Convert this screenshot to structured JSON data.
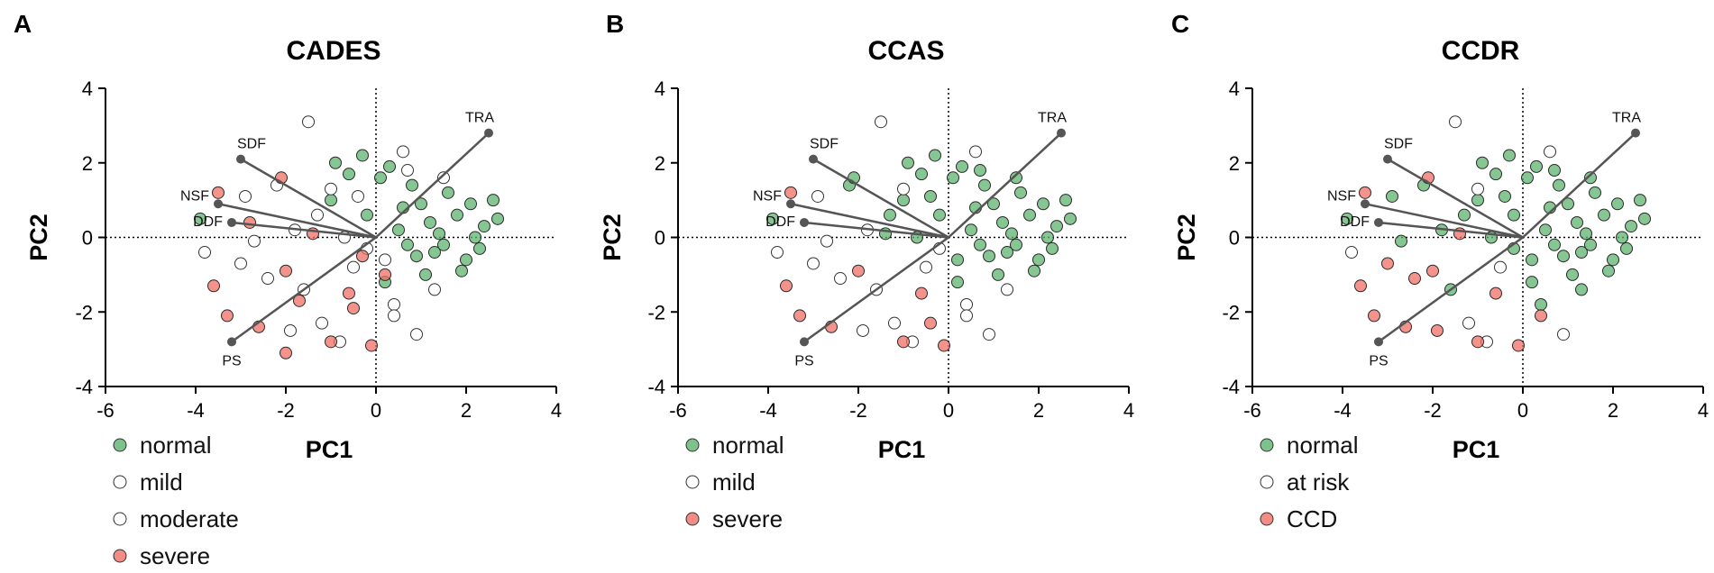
{
  "chart_data": [
    {
      "type": "scatter",
      "panel_letter": "A",
      "title": "CADES",
      "xlabel": "PC1",
      "ylabel": "PC2",
      "xlim": [
        -6,
        4
      ],
      "ylim": [
        -4,
        4
      ],
      "xticks": [
        "-6",
        "-4",
        "-2",
        "0",
        "2",
        "4"
      ],
      "yticks": [
        "4",
        "2",
        "0",
        "-2",
        "-4"
      ],
      "legend": [
        {
          "name": "normal",
          "color": "#5cb36e"
        },
        {
          "name": "mild",
          "color": "#ffffff"
        },
        {
          "name": "moderate",
          "color": "#ffffff"
        },
        {
          "name": "severe",
          "color": "#ef6f65"
        }
      ],
      "loadings": [
        {
          "label": "TRA",
          "x": 2.5,
          "y": 2.8
        },
        {
          "label": "SDF",
          "x": -3.0,
          "y": 2.1
        },
        {
          "label": "NSF",
          "x": -3.5,
          "y": 0.9
        },
        {
          "label": "DDF",
          "x": -3.2,
          "y": 0.4
        },
        {
          "label": "PS",
          "x": -3.2,
          "y": -2.8
        }
      ],
      "series": [
        {
          "name": "normal",
          "points": [
            [
              1.8,
              0.6
            ],
            [
              2.1,
              0.9
            ],
            [
              2.4,
              0.3
            ],
            [
              1.5,
              -0.2
            ],
            [
              2.6,
              1.0
            ],
            [
              1.2,
              0.4
            ],
            [
              0.9,
              -0.5
            ],
            [
              2.0,
              -0.6
            ],
            [
              1.6,
              1.2
            ],
            [
              0.6,
              0.8
            ],
            [
              1.1,
              -1.0
            ],
            [
              2.3,
              -0.3
            ],
            [
              1.4,
              0.1
            ],
            [
              0.3,
              1.9
            ],
            [
              -0.3,
              2.2
            ],
            [
              0.1,
              1.6
            ],
            [
              -0.6,
              1.7
            ],
            [
              -0.2,
              0.6
            ],
            [
              0.5,
              0.2
            ],
            [
              2.2,
              0.0
            ],
            [
              1.9,
              -0.9
            ],
            [
              0.8,
              1.4
            ],
            [
              1.3,
              -0.4
            ],
            [
              2.7,
              0.5
            ],
            [
              -1.0,
              1.0
            ],
            [
              0.2,
              -1.2
            ],
            [
              0.7,
              -0.2
            ],
            [
              1.0,
              0.9
            ],
            [
              -3.9,
              0.5
            ],
            [
              -0.9,
              2.0
            ]
          ]
        },
        {
          "name": "mild",
          "points": [
            [
              -1.5,
              3.1
            ],
            [
              -1.0,
              1.3
            ],
            [
              -0.5,
              -0.8
            ],
            [
              0.4,
              -1.8
            ],
            [
              -2.4,
              -1.1
            ],
            [
              -1.8,
              0.2
            ],
            [
              0.9,
              -2.6
            ],
            [
              -1.2,
              -2.3
            ],
            [
              0.6,
              2.3
            ],
            [
              -0.2,
              -0.3
            ],
            [
              1.3,
              -1.4
            ],
            [
              -2.9,
              1.1
            ],
            [
              -1.6,
              -1.4
            ],
            [
              -0.8,
              -2.8
            ]
          ]
        },
        {
          "name": "moderate",
          "points": [
            [
              -2.2,
              1.4
            ],
            [
              -1.3,
              0.6
            ],
            [
              -0.4,
              1.1
            ],
            [
              0.2,
              -0.6
            ],
            [
              -2.7,
              -0.1
            ],
            [
              -3.0,
              -0.7
            ],
            [
              0.7,
              1.8
            ],
            [
              -1.9,
              -2.5
            ],
            [
              0.4,
              -2.1
            ],
            [
              -3.8,
              -0.4
            ],
            [
              -0.7,
              0.0
            ],
            [
              1.5,
              1.6
            ]
          ]
        },
        {
          "name": "severe",
          "points": [
            [
              -3.5,
              1.2
            ],
            [
              -2.6,
              -2.4
            ],
            [
              -2.0,
              -0.9
            ],
            [
              -1.4,
              0.1
            ],
            [
              -0.6,
              -1.5
            ],
            [
              -0.1,
              -2.9
            ],
            [
              -0.5,
              -1.9
            ],
            [
              -1.0,
              -2.8
            ],
            [
              -3.6,
              -1.3
            ],
            [
              -2.1,
              1.6
            ],
            [
              -0.3,
              -0.5
            ],
            [
              0.2,
              -1.0
            ],
            [
              -2.8,
              0.4
            ],
            [
              -1.7,
              -1.7
            ],
            [
              -3.3,
              -2.1
            ],
            [
              -2.0,
              -3.1
            ]
          ]
        }
      ]
    },
    {
      "type": "scatter",
      "panel_letter": "B",
      "title": "CCAS",
      "xlabel": "PC1",
      "ylabel": "PC2",
      "xlim": [
        -6,
        4
      ],
      "ylim": [
        -4,
        4
      ],
      "xticks": [
        "-6",
        "-4",
        "-2",
        "0",
        "2",
        "4"
      ],
      "yticks": [
        "4",
        "2",
        "0",
        "-2",
        "-4"
      ],
      "legend": [
        {
          "name": "normal",
          "color": "#5cb36e"
        },
        {
          "name": "mild",
          "color": "#ffffff"
        },
        {
          "name": "severe",
          "color": "#ef6f65"
        }
      ],
      "loadings": [
        {
          "label": "TRA",
          "x": 2.5,
          "y": 2.8
        },
        {
          "label": "SDF",
          "x": -3.0,
          "y": 2.1
        },
        {
          "label": "NSF",
          "x": -3.5,
          "y": 0.9
        },
        {
          "label": "DDF",
          "x": -3.2,
          "y": 0.4
        },
        {
          "label": "PS",
          "x": -3.2,
          "y": -2.8
        }
      ],
      "series": [
        {
          "name": "normal",
          "points": [
            [
              1.8,
              0.6
            ],
            [
              2.1,
              0.9
            ],
            [
              2.4,
              0.3
            ],
            [
              1.5,
              -0.2
            ],
            [
              2.6,
              1.0
            ],
            [
              1.2,
              0.4
            ],
            [
              0.9,
              -0.5
            ],
            [
              2.0,
              -0.6
            ],
            [
              1.6,
              1.2
            ],
            [
              0.6,
              0.8
            ],
            [
              1.1,
              -1.0
            ],
            [
              2.3,
              -0.3
            ],
            [
              1.4,
              0.1
            ],
            [
              0.3,
              1.9
            ],
            [
              -0.3,
              2.2
            ],
            [
              0.1,
              1.6
            ],
            [
              -0.6,
              1.7
            ],
            [
              -0.2,
              0.6
            ],
            [
              0.5,
              0.2
            ],
            [
              2.2,
              0.0
            ],
            [
              1.9,
              -0.9
            ],
            [
              0.8,
              1.4
            ],
            [
              1.3,
              -0.4
            ],
            [
              2.7,
              0.5
            ],
            [
              -1.0,
              1.0
            ],
            [
              0.2,
              -1.2
            ],
            [
              0.7,
              -0.2
            ],
            [
              1.0,
              0.9
            ],
            [
              -3.9,
              0.5
            ],
            [
              -0.9,
              2.0
            ],
            [
              -2.2,
              1.4
            ],
            [
              -1.3,
              0.6
            ],
            [
              -0.4,
              1.1
            ],
            [
              0.7,
              1.8
            ],
            [
              1.5,
              1.6
            ],
            [
              -0.7,
              0.0
            ],
            [
              0.2,
              -0.6
            ],
            [
              -1.4,
              0.1
            ],
            [
              -2.1,
              1.6
            ]
          ]
        },
        {
          "name": "mild",
          "points": [
            [
              -1.5,
              3.1
            ],
            [
              -1.0,
              1.3
            ],
            [
              -0.5,
              -0.8
            ],
            [
              0.4,
              -1.8
            ],
            [
              -2.4,
              -1.1
            ],
            [
              -1.8,
              0.2
            ],
            [
              0.9,
              -2.6
            ],
            [
              -1.2,
              -2.3
            ],
            [
              0.6,
              2.3
            ],
            [
              -0.2,
              -0.3
            ],
            [
              1.3,
              -1.4
            ],
            [
              -2.9,
              1.1
            ],
            [
              -1.6,
              -1.4
            ],
            [
              -0.8,
              -2.8
            ],
            [
              -2.7,
              -0.1
            ],
            [
              -3.0,
              -0.7
            ],
            [
              -1.9,
              -2.5
            ],
            [
              0.4,
              -2.1
            ],
            [
              -3.8,
              -0.4
            ]
          ]
        },
        {
          "name": "severe",
          "points": [
            [
              -3.5,
              1.2
            ],
            [
              -2.6,
              -2.4
            ],
            [
              -2.0,
              -0.9
            ],
            [
              -0.6,
              -1.5
            ],
            [
              -0.1,
              -2.9
            ],
            [
              -1.0,
              -2.8
            ],
            [
              -3.6,
              -1.3
            ],
            [
              -3.3,
              -2.1
            ],
            [
              -0.4,
              -2.3
            ]
          ]
        }
      ]
    },
    {
      "type": "scatter",
      "panel_letter": "C",
      "title": "CCDR",
      "xlabel": "PC1",
      "ylabel": "PC2",
      "xlim": [
        -6,
        4
      ],
      "ylim": [
        -4,
        4
      ],
      "xticks": [
        "-6",
        "-4",
        "-2",
        "0",
        "2",
        "4"
      ],
      "yticks": [
        "4",
        "2",
        "0",
        "-2",
        "-4"
      ],
      "legend": [
        {
          "name": "normal",
          "color": "#5cb36e"
        },
        {
          "name": "at risk",
          "color": "#ffffff"
        },
        {
          "name": "CCD",
          "color": "#ef6f65"
        }
      ],
      "loadings": [
        {
          "label": "TRA",
          "x": 2.5,
          "y": 2.8
        },
        {
          "label": "SDF",
          "x": -3.0,
          "y": 2.1
        },
        {
          "label": "NSF",
          "x": -3.5,
          "y": 0.9
        },
        {
          "label": "DDF",
          "x": -3.2,
          "y": 0.4
        },
        {
          "label": "PS",
          "x": -3.2,
          "y": -2.8
        }
      ],
      "series": [
        {
          "name": "normal",
          "points": [
            [
              1.8,
              0.6
            ],
            [
              2.1,
              0.9
            ],
            [
              2.4,
              0.3
            ],
            [
              1.5,
              -0.2
            ],
            [
              2.6,
              1.0
            ],
            [
              1.2,
              0.4
            ],
            [
              0.9,
              -0.5
            ],
            [
              2.0,
              -0.6
            ],
            [
              1.6,
              1.2
            ],
            [
              0.6,
              0.8
            ],
            [
              1.1,
              -1.0
            ],
            [
              2.3,
              -0.3
            ],
            [
              1.4,
              0.1
            ],
            [
              0.3,
              1.9
            ],
            [
              -0.3,
              2.2
            ],
            [
              0.1,
              1.6
            ],
            [
              -0.6,
              1.7
            ],
            [
              -0.2,
              0.6
            ],
            [
              0.5,
              0.2
            ],
            [
              2.2,
              0.0
            ],
            [
              1.9,
              -0.9
            ],
            [
              0.8,
              1.4
            ],
            [
              1.3,
              -0.4
            ],
            [
              2.7,
              0.5
            ],
            [
              -1.0,
              1.0
            ],
            [
              0.2,
              -1.2
            ],
            [
              0.7,
              -0.2
            ],
            [
              1.0,
              0.9
            ],
            [
              -3.9,
              0.5
            ],
            [
              -0.9,
              2.0
            ],
            [
              -2.2,
              1.4
            ],
            [
              -1.3,
              0.6
            ],
            [
              -0.4,
              1.1
            ],
            [
              0.7,
              1.8
            ],
            [
              1.5,
              1.6
            ],
            [
              -0.7,
              0.0
            ],
            [
              0.2,
              -0.6
            ],
            [
              -1.8,
              0.2
            ],
            [
              -2.9,
              1.1
            ],
            [
              -0.2,
              -0.3
            ],
            [
              0.4,
              -1.8
            ],
            [
              1.3,
              -1.4
            ],
            [
              -1.6,
              -1.4
            ],
            [
              -2.7,
              -0.1
            ]
          ]
        },
        {
          "name": "at risk",
          "points": [
            [
              -1.5,
              3.1
            ],
            [
              -0.5,
              -0.8
            ],
            [
              0.9,
              -2.6
            ],
            [
              -0.8,
              -2.8
            ],
            [
              -3.8,
              -0.4
            ],
            [
              -1.0,
              1.3
            ],
            [
              0.6,
              2.3
            ],
            [
              -1.2,
              -2.3
            ]
          ]
        },
        {
          "name": "CCD",
          "points": [
            [
              -3.5,
              1.2
            ],
            [
              -2.6,
              -2.4
            ],
            [
              -2.0,
              -0.9
            ],
            [
              -0.6,
              -1.5
            ],
            [
              -0.1,
              -2.9
            ],
            [
              -1.0,
              -2.8
            ],
            [
              -3.6,
              -1.3
            ],
            [
              -3.3,
              -2.1
            ],
            [
              -2.4,
              -1.1
            ],
            [
              -1.9,
              -2.5
            ],
            [
              -3.0,
              -0.7
            ],
            [
              0.4,
              -2.1
            ],
            [
              -2.1,
              1.6
            ],
            [
              -1.4,
              0.1
            ]
          ]
        }
      ]
    }
  ]
}
